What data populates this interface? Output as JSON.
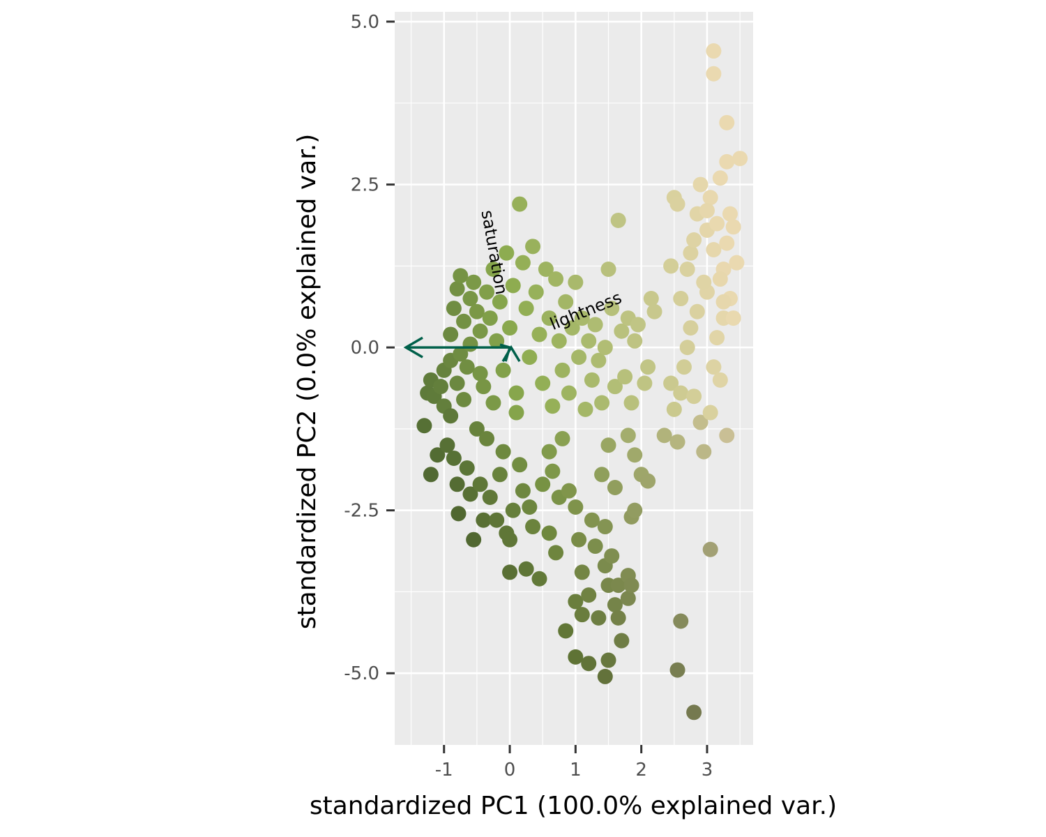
{
  "chart_data": {
    "type": "scatter",
    "title": "",
    "xlabel": "standardized PC1 (100.0% explained var.)",
    "ylabel": "standardized PC2 (0.0% explained var.)",
    "xlim": [
      -1.75,
      3.7
    ],
    "ylim": [
      -6.1,
      5.15
    ],
    "x_ticks": [
      -1,
      0,
      1,
      2,
      3
    ],
    "x_tick_labels": [
      "-1",
      "0",
      "1",
      "2",
      "3"
    ],
    "y_ticks": [
      -5.0,
      -2.5,
      0.0,
      2.5,
      5.0
    ],
    "y_tick_labels": [
      "-5.0",
      "-2.5",
      "0.0",
      "2.5",
      "5.0"
    ],
    "grid": true,
    "panel_background": "#ebebeb",
    "point_color_scale": {
      "low": "#5e7a3a",
      "mid": "#8cab4e",
      "high": "#ead9b0"
    },
    "loadings": [
      {
        "name": "lightness",
        "x": 0.0,
        "y": 0.0
      },
      {
        "name": "saturation",
        "x": 0.0,
        "y": 0.0
      },
      {
        "name": "",
        "x": -1.58,
        "y": 0.0
      }
    ],
    "loading_arrow_color": "#00604a",
    "points": [
      [
        -1.3,
        -1.2
      ],
      [
        -1.25,
        -0.7
      ],
      [
        -1.2,
        -0.5
      ],
      [
        -1.15,
        -0.75
      ],
      [
        -1.1,
        -1.65
      ],
      [
        -1.05,
        -0.6
      ],
      [
        -1.0,
        -0.35
      ],
      [
        -1.0,
        -0.9
      ],
      [
        -1.2,
        -1.95
      ],
      [
        -0.95,
        -1.5
      ],
      [
        -0.9,
        -0.2
      ],
      [
        -0.9,
        -1.05
      ],
      [
        -0.85,
        -1.7
      ],
      [
        -0.8,
        -2.1
      ],
      [
        -0.8,
        -0.55
      ],
      [
        -0.78,
        -2.55
      ],
      [
        -0.75,
        -0.1
      ],
      [
        -0.7,
        -0.8
      ],
      [
        -0.65,
        -1.85
      ],
      [
        -0.6,
        -2.25
      ],
      [
        -0.55,
        -2.95
      ],
      [
        -0.5,
        -1.25
      ],
      [
        -0.45,
        -0.4
      ],
      [
        -0.45,
        -2.1
      ],
      [
        -0.4,
        -2.65
      ],
      [
        -0.35,
        -1.4
      ],
      [
        -0.3,
        -2.3
      ],
      [
        -0.25,
        -0.85
      ],
      [
        -0.2,
        -2.65
      ],
      [
        -0.15,
        -1.95
      ],
      [
        -0.1,
        -1.6
      ],
      [
        -0.05,
        -2.85
      ],
      [
        0.0,
        -2.95
      ],
      [
        0.0,
        -3.45
      ],
      [
        0.05,
        -2.5
      ],
      [
        0.1,
        -1.0
      ],
      [
        0.15,
        -1.8
      ],
      [
        0.2,
        -2.2
      ],
      [
        0.25,
        -3.4
      ],
      [
        0.3,
        -2.45
      ],
      [
        0.35,
        -2.75
      ],
      [
        0.45,
        -3.55
      ],
      [
        0.5,
        -2.1
      ],
      [
        0.6,
        -1.6
      ],
      [
        0.6,
        -2.85
      ],
      [
        0.65,
        -1.9
      ],
      [
        0.7,
        -3.15
      ],
      [
        0.75,
        -2.3
      ],
      [
        0.8,
        -1.4
      ],
      [
        0.9,
        -2.2
      ],
      [
        1.0,
        -2.45
      ],
      [
        1.0,
        -3.9
      ],
      [
        1.05,
        -2.95
      ],
      [
        1.1,
        -4.1
      ],
      [
        1.1,
        -3.45
      ],
      [
        1.2,
        -3.8
      ],
      [
        1.25,
        -2.65
      ],
      [
        1.3,
        -3.05
      ],
      [
        1.35,
        -4.15
      ],
      [
        1.45,
        -2.75
      ],
      [
        1.45,
        -3.35
      ],
      [
        1.5,
        -3.65
      ],
      [
        1.55,
        -3.2
      ],
      [
        1.6,
        -3.95
      ],
      [
        1.65,
        -4.15
      ],
      [
        1.7,
        -4.5
      ],
      [
        1.65,
        -3.65
      ],
      [
        1.8,
        -3.5
      ],
      [
        1.85,
        -2.6
      ],
      [
        1.9,
        -2.5
      ],
      [
        1.8,
        -3.85
      ],
      [
        1.85,
        -3.65
      ],
      [
        0.85,
        -4.35
      ],
      [
        1.0,
        -4.75
      ],
      [
        1.2,
        -4.85
      ],
      [
        1.45,
        -5.05
      ],
      [
        1.5,
        -4.8
      ],
      [
        2.55,
        -4.95
      ],
      [
        2.6,
        -4.2
      ],
      [
        2.8,
        -5.6
      ],
      [
        3.05,
        -3.1
      ],
      [
        -0.9,
        0.2
      ],
      [
        -0.85,
        0.6
      ],
      [
        -0.8,
        0.9
      ],
      [
        -0.75,
        1.1
      ],
      [
        -0.7,
        0.4
      ],
      [
        -0.65,
        -0.3
      ],
      [
        -0.6,
        0.75
      ],
      [
        -0.6,
        0.05
      ],
      [
        -0.55,
        1.0
      ],
      [
        -0.5,
        0.55
      ],
      [
        -0.45,
        0.25
      ],
      [
        -0.4,
        -0.6
      ],
      [
        -0.35,
        0.85
      ],
      [
        -0.3,
        0.45
      ],
      [
        -0.25,
        1.2
      ],
      [
        -0.2,
        0.1
      ],
      [
        -0.15,
        0.7
      ],
      [
        -0.1,
        -0.35
      ],
      [
        -0.05,
        1.45
      ],
      [
        0.0,
        0.3
      ],
      [
        0.05,
        0.95
      ],
      [
        0.1,
        -0.7
      ],
      [
        0.15,
        2.2
      ],
      [
        0.2,
        1.3
      ],
      [
        0.25,
        0.6
      ],
      [
        0.3,
        -0.15
      ],
      [
        0.35,
        1.55
      ],
      [
        0.4,
        0.85
      ],
      [
        0.45,
        0.2
      ],
      [
        0.5,
        -0.55
      ],
      [
        0.55,
        1.2
      ],
      [
        0.6,
        0.45
      ],
      [
        0.65,
        -0.9
      ],
      [
        0.7,
        1.05
      ],
      [
        0.75,
        0.1
      ],
      [
        0.8,
        -0.35
      ],
      [
        0.85,
        0.7
      ],
      [
        0.9,
        -0.7
      ],
      [
        0.95,
        0.3
      ],
      [
        1.0,
        1.0
      ],
      [
        1.05,
        -0.15
      ],
      [
        1.1,
        0.45
      ],
      [
        1.15,
        -0.95
      ],
      [
        1.2,
        0.1
      ],
      [
        1.25,
        -0.5
      ],
      [
        1.3,
        0.35
      ],
      [
        1.35,
        -0.2
      ],
      [
        1.4,
        -0.85
      ],
      [
        1.45,
        0.0
      ],
      [
        1.5,
        1.2
      ],
      [
        1.55,
        0.6
      ],
      [
        1.6,
        -0.6
      ],
      [
        1.65,
        1.95
      ],
      [
        1.7,
        0.25
      ],
      [
        1.75,
        -0.45
      ],
      [
        1.8,
        0.45
      ],
      [
        1.85,
        -0.85
      ],
      [
        1.9,
        0.1
      ],
      [
        1.95,
        0.35
      ],
      [
        2.05,
        -0.55
      ],
      [
        2.1,
        -0.3
      ],
      [
        2.15,
        0.75
      ],
      [
        2.2,
        0.55
      ],
      [
        1.8,
        -1.35
      ],
      [
        1.9,
        -1.65
      ],
      [
        2.0,
        -1.95
      ],
      [
        2.1,
        -2.05
      ],
      [
        1.5,
        -1.5
      ],
      [
        1.6,
        -2.15
      ],
      [
        1.4,
        -1.95
      ],
      [
        2.35,
        -1.35
      ],
      [
        2.45,
        -0.55
      ],
      [
        2.5,
        -0.95
      ],
      [
        2.55,
        -1.45
      ],
      [
        2.6,
        -0.7
      ],
      [
        2.65,
        -0.3
      ],
      [
        2.7,
        0.0
      ],
      [
        2.75,
        0.3
      ],
      [
        2.8,
        -0.75
      ],
      [
        2.85,
        0.55
      ],
      [
        2.9,
        -1.15
      ],
      [
        2.95,
        -1.6
      ],
      [
        3.0,
        0.85
      ],
      [
        3.05,
        -1.0
      ],
      [
        3.1,
        -0.3
      ],
      [
        3.15,
        0.15
      ],
      [
        3.2,
        -0.5
      ],
      [
        3.25,
        0.45
      ],
      [
        3.3,
        -1.35
      ],
      [
        3.35,
        0.75
      ],
      [
        3.4,
        0.45
      ],
      [
        2.5,
        2.3
      ],
      [
        2.55,
        2.2
      ],
      [
        2.7,
        1.2
      ],
      [
        2.75,
        1.45
      ],
      [
        2.8,
        1.65
      ],
      [
        2.85,
        2.05
      ],
      [
        2.9,
        2.5
      ],
      [
        2.95,
        1.0
      ],
      [
        3.0,
        1.8
      ],
      [
        3.05,
        2.3
      ],
      [
        3.1,
        1.5
      ],
      [
        3.15,
        1.9
      ],
      [
        3.2,
        2.6
      ],
      [
        3.25,
        1.2
      ],
      [
        3.3,
        1.6
      ],
      [
        3.35,
        2.05
      ],
      [
        3.4,
        1.85
      ],
      [
        3.45,
        1.3
      ],
      [
        3.5,
        2.9
      ],
      [
        3.3,
        2.85
      ],
      [
        3.3,
        3.45
      ],
      [
        3.1,
        4.2
      ],
      [
        3.1,
        4.55
      ],
      [
        3.0,
        2.1
      ],
      [
        3.2,
        1.05
      ],
      [
        3.25,
        0.7
      ],
      [
        2.6,
        0.75
      ],
      [
        2.45,
        1.25
      ]
    ]
  }
}
